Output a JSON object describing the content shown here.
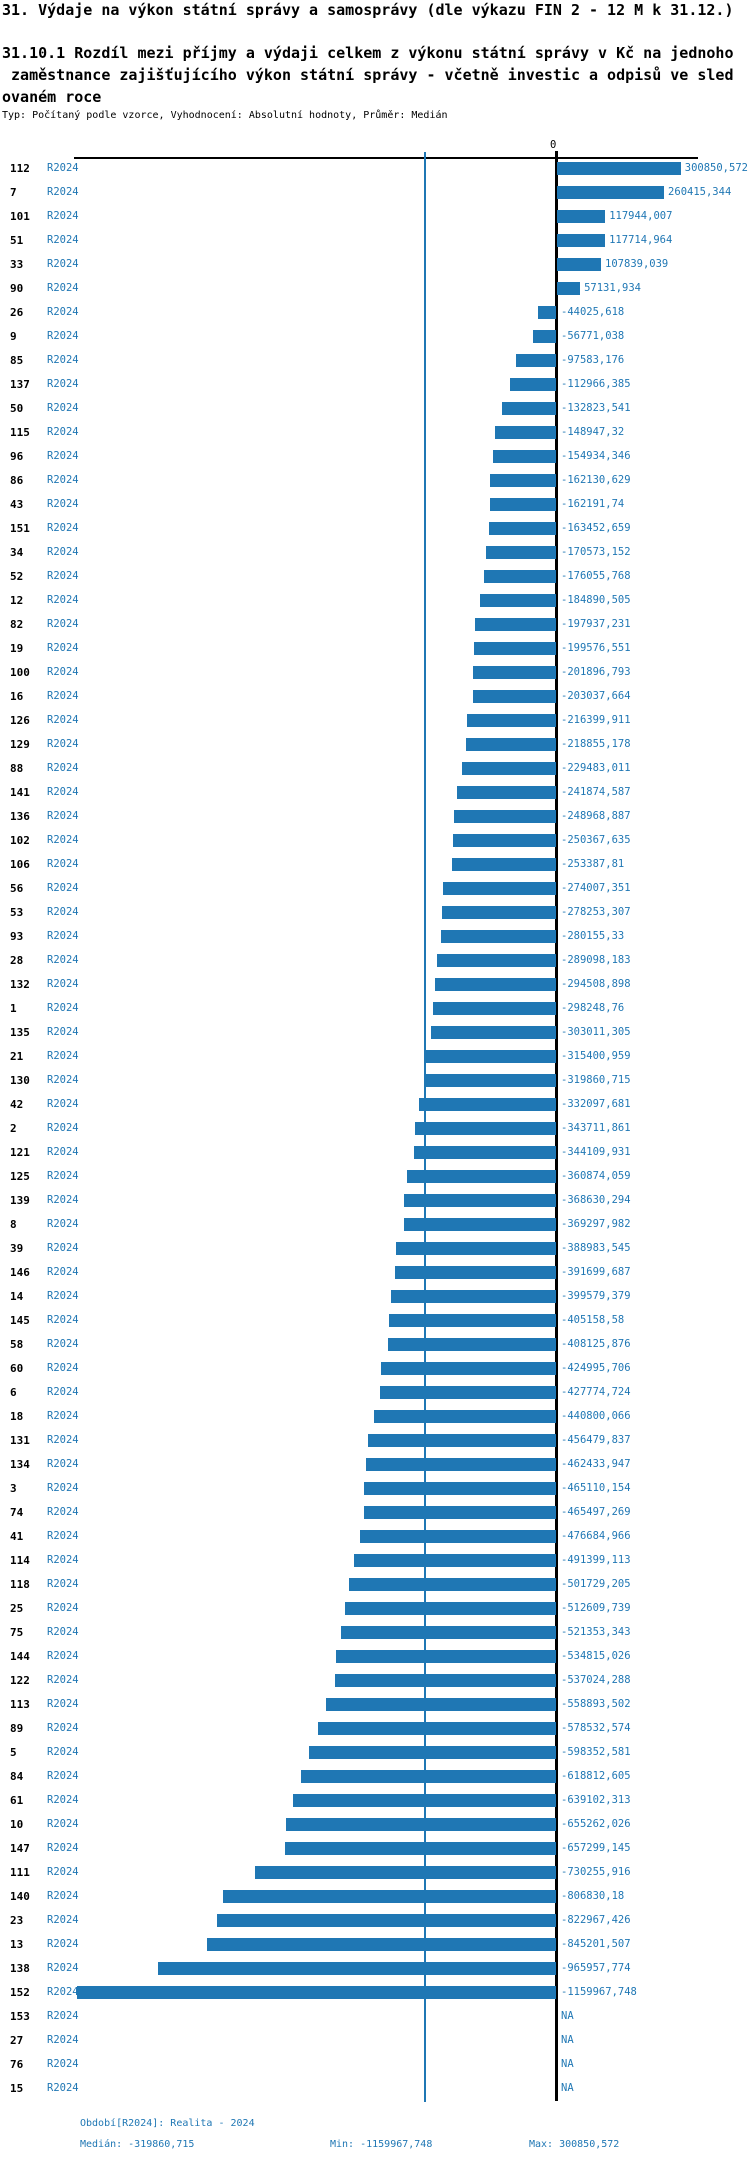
{
  "header": {
    "title": "31. Výdaje na výkon státní správy a samosprávy (dle výkazu FIN 2 - 12 M k 31.12.)",
    "subtitle_lines": [
      "31.10.1 Rozdíl mezi příjmy a výdaji celkem z výkonu státní správy v Kč na jednoho",
      " zaměstnance zajišťujícího výkon státní správy - včetně investic a odpisů ve sled",
      "ovaném roce"
    ],
    "meta_line": "Typ: Počítaný podle vzorce, Vyhodnocení: Absolutní hodnoty, Průměr: Medián"
  },
  "colors": {
    "bar": "#1f77b4",
    "accent_text": "#1f77b4",
    "zero_line": "#000000",
    "median_line": "#1f77b4"
  },
  "chart_data": {
    "type": "bar",
    "orientation": "horizontal",
    "zero_tick_label": "0",
    "period_label": "R2024",
    "na_label": "NA",
    "median": -319860.715,
    "min": -1159967.748,
    "max": 300850.572,
    "xlim": [
      -1159967.748,
      300850.572
    ],
    "categories": [
      "112",
      "7",
      "101",
      "51",
      "33",
      "90",
      "26",
      "9",
      "85",
      "137",
      "50",
      "115",
      "96",
      "86",
      "43",
      "151",
      "34",
      "52",
      "12",
      "82",
      "19",
      "100",
      "16",
      "126",
      "129",
      "88",
      "141",
      "136",
      "102",
      "106",
      "56",
      "53",
      "93",
      "28",
      "132",
      "1",
      "135",
      "21",
      "130",
      "42",
      "2",
      "121",
      "125",
      "139",
      "8",
      "39",
      "146",
      "14",
      "145",
      "58",
      "60",
      "6",
      "18",
      "131",
      "134",
      "3",
      "74",
      "41",
      "114",
      "118",
      "25",
      "75",
      "144",
      "122",
      "113",
      "89",
      "5",
      "84",
      "61",
      "10",
      "147",
      "111",
      "140",
      "23",
      "13",
      "138",
      "152",
      "153",
      "27",
      "76",
      "15"
    ],
    "values": [
      300850.572,
      260415.344,
      117944.007,
      117714.964,
      107839.039,
      57131.934,
      -44025.618,
      -56771.038,
      -97583.176,
      -112966.385,
      -132823.541,
      -148947.32,
      -154934.346,
      -162130.629,
      -162191.74,
      -163452.659,
      -170573.152,
      -176055.768,
      -184890.505,
      -197937.231,
      -199576.551,
      -201896.793,
      -203037.664,
      -216399.911,
      -218855.178,
      -229483.011,
      -241874.587,
      -248968.887,
      -250367.635,
      -253387.81,
      -274007.351,
      -278253.307,
      -280155.33,
      -289098.183,
      -294508.898,
      -298248.76,
      -303011.305,
      -315400.959,
      -319860.715,
      -332097.681,
      -343711.861,
      -344109.931,
      -360874.059,
      -368630.294,
      -369297.982,
      -388983.545,
      -391699.687,
      -399579.379,
      -405158.58,
      -408125.876,
      -424995.706,
      -427774.724,
      -440800.066,
      -456479.837,
      -462433.947,
      -465110.154,
      -465497.269,
      -476684.966,
      -491399.113,
      -501729.205,
      -512609.739,
      -521353.343,
      -534815.026,
      -537024.288,
      -558893.502,
      -578532.574,
      -598352.581,
      -618812.605,
      -639102.313,
      -655262.026,
      -657299.145,
      -730255.916,
      -806830.18,
      -822967.426,
      -845201.507,
      -965957.774,
      -1159967.748,
      null,
      null,
      null,
      null
    ],
    "value_labels": [
      "300850,572",
      "260415,344",
      "117944,007",
      "117714,964",
      "107839,039",
      "57131,934",
      "-44025,618",
      "-56771,038",
      "-97583,176",
      "-112966,385",
      "-132823,541",
      "-148947,32",
      "-154934,346",
      "-162130,629",
      "-162191,74",
      "-163452,659",
      "-170573,152",
      "-176055,768",
      "-184890,505",
      "-197937,231",
      "-199576,551",
      "-201896,793",
      "-203037,664",
      "-216399,911",
      "-218855,178",
      "-229483,011",
      "-241874,587",
      "-248968,887",
      "-250367,635",
      "-253387,81",
      "-274007,351",
      "-278253,307",
      "-280155,33",
      "-289098,183",
      "-294508,898",
      "-298248,76",
      "-303011,305",
      "-315400,959",
      "-319860,715",
      "-332097,681",
      "-343711,861",
      "-344109,931",
      "-360874,059",
      "-368630,294",
      "-369297,982",
      "-388983,545",
      "-391699,687",
      "-399579,379",
      "-405158,58",
      "-408125,876",
      "-424995,706",
      "-427774,724",
      "-440800,066",
      "-456479,837",
      "-462433,947",
      "-465110,154",
      "-465497,269",
      "-476684,966",
      "-491399,113",
      "-501729,205",
      "-512609,739",
      "-521353,343",
      "-534815,026",
      "-537024,288",
      "-558893,502",
      "-578532,574",
      "-598352,581",
      "-618812,605",
      "-639102,313",
      "-655262,026",
      "-657299,145",
      "-730255,916",
      "-806830,18",
      "-822967,426",
      "-845201,507",
      "-965957,774",
      "-1159967,748",
      "NA",
      "NA",
      "NA",
      "NA"
    ]
  },
  "footer": {
    "period_line": "Období[R2024]: Realita - 2024",
    "median_label": "Medián: -319860,715",
    "min_label": "Min: -1159967,748",
    "max_label": "Max: 300850,572"
  }
}
